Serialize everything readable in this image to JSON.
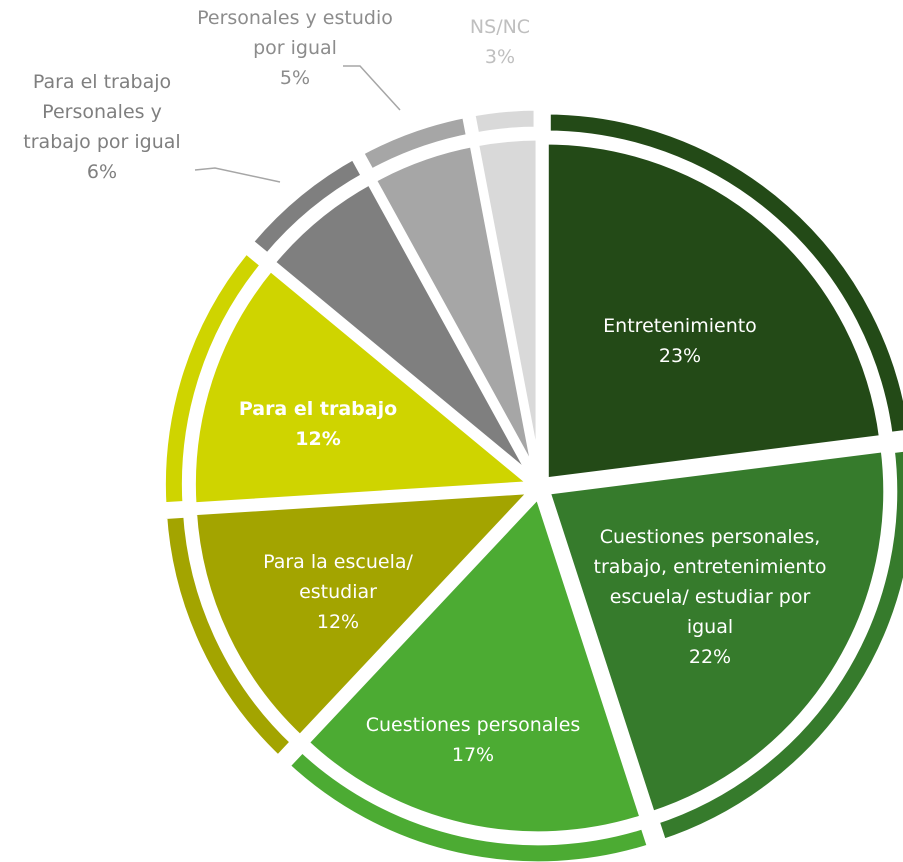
{
  "chart_data": {
    "type": "pie",
    "title": "",
    "slices": [
      {
        "name": "Entretenimiento",
        "lines": [
          "Entretenimiento"
        ],
        "value": 23,
        "value_label": "23%",
        "color": "#234a17",
        "label_color": "#ffffff",
        "bold": false
      },
      {
        "name": "Cuestiones personales, trabajo, entretenimiento escuela/ estudiar por igual",
        "lines": [
          "Cuestiones personales,",
          "trabajo, entretenimiento",
          "escuela/ estudiar  por",
          "igual"
        ],
        "value": 22,
        "value_label": "22%",
        "color": "#367b2c",
        "label_color": "#ffffff",
        "bold": false
      },
      {
        "name": "Cuestiones personales",
        "lines": [
          "Cuestiones personales"
        ],
        "value": 17,
        "value_label": "17%",
        "color": "#4cab33",
        "label_color": "#ffffff",
        "bold": false
      },
      {
        "name": "Para la escuela/ estudiar",
        "lines": [
          "Para la escuela/",
          "estudiar"
        ],
        "value": 12,
        "value_label": "12%",
        "color": "#a3a400",
        "label_color": "#ffffff",
        "bold": false
      },
      {
        "name": "Para el trabajo",
        "lines": [
          "Para el trabajo"
        ],
        "value": 12,
        "value_label": "12%",
        "color": "#cfd400",
        "label_color": "#ffffff",
        "bold": true
      },
      {
        "name": "Para el trabajo Personales y trabajo por igual",
        "lines": [
          "Para el trabajo",
          "Personales y",
          "trabajo por igual"
        ],
        "value": 6,
        "value_label": "6%",
        "color": "#7f7f7f",
        "label_color": "#7f7f7f",
        "bold": false
      },
      {
        "name": "Personales y estudio por igual",
        "lines": [
          "Personales y estudio",
          "por igual"
        ],
        "value": 5,
        "value_label": "5%",
        "color": "#a6a6a6",
        "label_color": "#8c8c8c",
        "bold": false
      },
      {
        "name": "NS/NC",
        "lines": [
          "NS/NC"
        ],
        "value": 3,
        "value_label": "3%",
        "color": "#d9d9d9",
        "label_color": "#bfbfbf",
        "bold": false
      }
    ],
    "legend": "none"
  }
}
